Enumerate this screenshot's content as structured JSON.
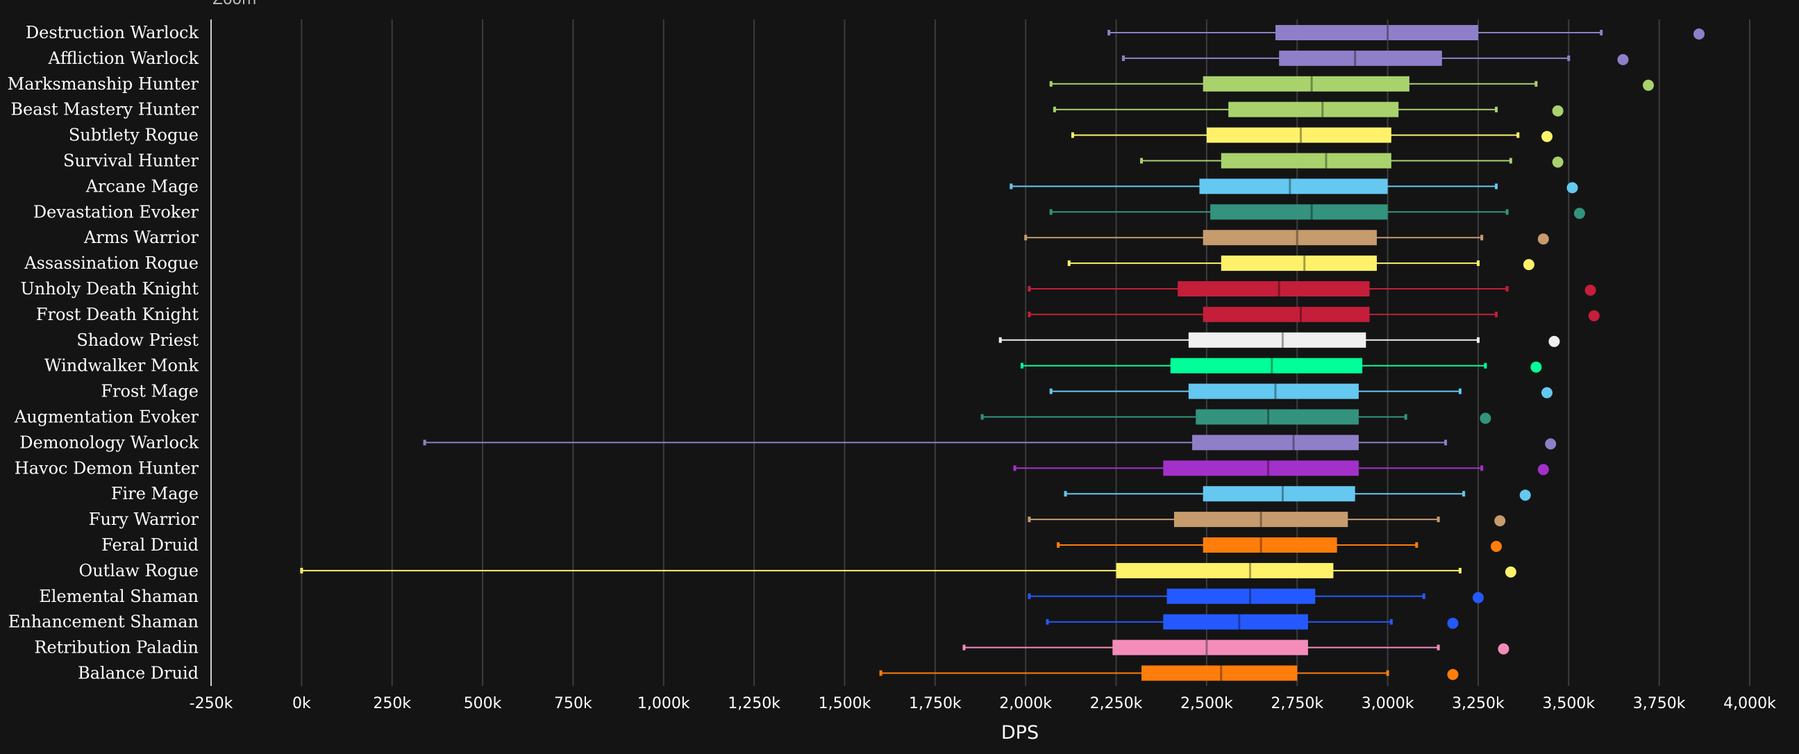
{
  "zoom_label": "Zoom",
  "chart_data": {
    "type": "boxplot",
    "xlabel": "DPS",
    "xlim": [
      -250,
      4000
    ],
    "unit": "k",
    "x_ticks": [
      "-250k",
      "0k",
      "250k",
      "500k",
      "750k",
      "1,000k",
      "1,250k",
      "1,500k",
      "1,750k",
      "2,000k",
      "2,250k",
      "2,500k",
      "2,750k",
      "3,000k",
      "3,250k",
      "3,500k",
      "3,750k",
      "4,000k"
    ],
    "x_tick_values": [
      -250,
      0,
      250,
      500,
      750,
      1000,
      1250,
      1500,
      1750,
      2000,
      2250,
      2500,
      2750,
      3000,
      3250,
      3500,
      3750,
      4000
    ],
    "grid": true,
    "series": [
      {
        "name": "Destruction Warlock",
        "color": "#8f7fc9",
        "min": 2230,
        "q1": 2690,
        "median": 3000,
        "q3": 3250,
        "max": 3590,
        "outlier": 3860
      },
      {
        "name": "Affliction Warlock",
        "color": "#8f7fc9",
        "min": 2270,
        "q1": 2700,
        "median": 2910,
        "q3": 3150,
        "max": 3500,
        "outlier": 3650
      },
      {
        "name": "Marksmanship Hunter",
        "color": "#a9d26d",
        "min": 2070,
        "q1": 2490,
        "median": 2790,
        "q3": 3060,
        "max": 3410,
        "outlier": 3720
      },
      {
        "name": "Beast Mastery Hunter",
        "color": "#a9d26d",
        "min": 2080,
        "q1": 2560,
        "median": 2820,
        "q3": 3030,
        "max": 3300,
        "outlier": 3470
      },
      {
        "name": "Subtlety Rogue",
        "color": "#fff26a",
        "min": 2130,
        "q1": 2500,
        "median": 2760,
        "q3": 3010,
        "max": 3360,
        "outlier": 3440
      },
      {
        "name": "Survival Hunter",
        "color": "#a9d26d",
        "min": 2320,
        "q1": 2540,
        "median": 2830,
        "q3": 3010,
        "max": 3340,
        "outlier": 3470
      },
      {
        "name": "Arcane Mage",
        "color": "#64c8f0",
        "min": 1960,
        "q1": 2480,
        "median": 2730,
        "q3": 3000,
        "max": 3300,
        "outlier": 3510
      },
      {
        "name": "Devastation Evoker",
        "color": "#33937f",
        "min": 2070,
        "q1": 2510,
        "median": 2790,
        "q3": 3000,
        "max": 3330,
        "outlier": 3530
      },
      {
        "name": "Arms Warrior",
        "color": "#c69b6d",
        "min": 2000,
        "q1": 2490,
        "median": 2750,
        "q3": 2970,
        "max": 3260,
        "outlier": 3430
      },
      {
        "name": "Assassination Rogue",
        "color": "#fff26a",
        "min": 2120,
        "q1": 2540,
        "median": 2770,
        "q3": 2970,
        "max": 3250,
        "outlier": 3390
      },
      {
        "name": "Unholy Death Knight",
        "color": "#c41e3a",
        "min": 2010,
        "q1": 2420,
        "median": 2700,
        "q3": 2950,
        "max": 3330,
        "outlier": 3560
      },
      {
        "name": "Frost Death Knight",
        "color": "#c41e3a",
        "min": 2010,
        "q1": 2490,
        "median": 2760,
        "q3": 2950,
        "max": 3300,
        "outlier": 3570
      },
      {
        "name": "Shadow Priest",
        "color": "#f0f0f0",
        "min": 1930,
        "q1": 2450,
        "median": 2710,
        "q3": 2940,
        "max": 3250,
        "outlier": 3460
      },
      {
        "name": "Windwalker Monk",
        "color": "#00ff98",
        "min": 1990,
        "q1": 2400,
        "median": 2680,
        "q3": 2930,
        "max": 3270,
        "outlier": 3410
      },
      {
        "name": "Frost Mage",
        "color": "#64c8f0",
        "min": 2070,
        "q1": 2450,
        "median": 2690,
        "q3": 2920,
        "max": 3200,
        "outlier": 3440
      },
      {
        "name": "Augmentation Evoker",
        "color": "#33937f",
        "min": 1880,
        "q1": 2470,
        "median": 2670,
        "q3": 2920,
        "max": 3050,
        "outlier": 3270
      },
      {
        "name": "Demonology Warlock",
        "color": "#8f7fc9",
        "min": 340,
        "q1": 2460,
        "median": 2740,
        "q3": 2920,
        "max": 3160,
        "outlier": 3450
      },
      {
        "name": "Havoc Demon Hunter",
        "color": "#a330c9",
        "min": 1970,
        "q1": 2380,
        "median": 2670,
        "q3": 2920,
        "max": 3260,
        "outlier": 3430
      },
      {
        "name": "Fire Mage",
        "color": "#64c8f0",
        "min": 2110,
        "q1": 2490,
        "median": 2710,
        "q3": 2910,
        "max": 3210,
        "outlier": 3380
      },
      {
        "name": "Fury Warrior",
        "color": "#c69b6d",
        "min": 2010,
        "q1": 2410,
        "median": 2650,
        "q3": 2890,
        "max": 3140,
        "outlier": 3310
      },
      {
        "name": "Feral Druid",
        "color": "#ff7d0a",
        "min": 2090,
        "q1": 2490,
        "median": 2650,
        "q3": 2860,
        "max": 3080,
        "outlier": 3300
      },
      {
        "name": "Outlaw Rogue",
        "color": "#fff26a",
        "min": 0,
        "q1": 2250,
        "median": 2620,
        "q3": 2850,
        "max": 3200,
        "outlier": 3340
      },
      {
        "name": "Elemental Shaman",
        "color": "#2459ff",
        "min": 2010,
        "q1": 2390,
        "median": 2620,
        "q3": 2800,
        "max": 3100,
        "outlier": 3250
      },
      {
        "name": "Enhancement Shaman",
        "color": "#2459ff",
        "min": 2060,
        "q1": 2380,
        "median": 2590,
        "q3": 2780,
        "max": 3010,
        "outlier": 3180
      },
      {
        "name": "Retribution Paladin",
        "color": "#f48cba",
        "min": 1830,
        "q1": 2240,
        "median": 2500,
        "q3": 2780,
        "max": 3140,
        "outlier": 3320
      },
      {
        "name": "Balance Druid",
        "color": "#ff7d0a",
        "min": 1600,
        "q1": 2320,
        "median": 2540,
        "q3": 2750,
        "max": 3000,
        "outlier": 3180
      }
    ]
  }
}
